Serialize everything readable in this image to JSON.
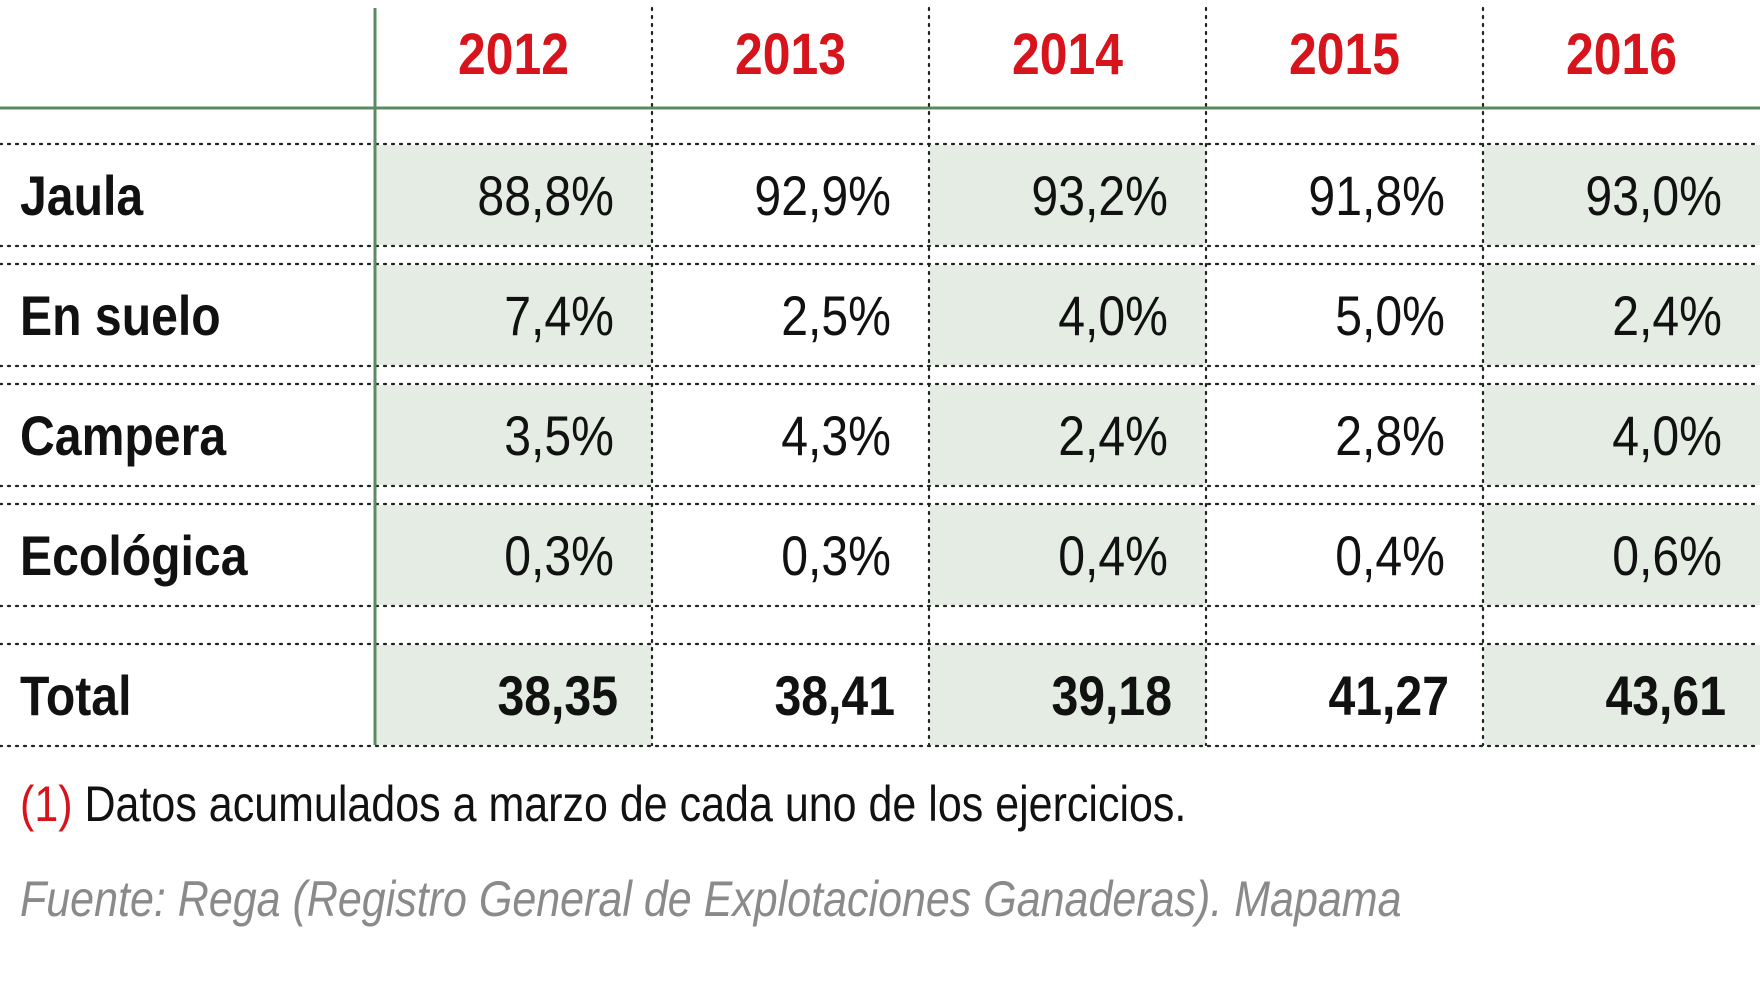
{
  "chart_data": {
    "type": "table",
    "columns": [
      "2012",
      "2013",
      "2014",
      "2015",
      "2016"
    ],
    "rows": [
      {
        "label": "Jaula",
        "values": [
          "88,8%",
          "92,9%",
          "93,2%",
          "91,8%",
          "93,0%"
        ]
      },
      {
        "label": "En suelo",
        "values": [
          "7,4%",
          "2,5%",
          "4,0%",
          "5,0%",
          "2,4%"
        ]
      },
      {
        "label": "Campera",
        "values": [
          "3,5%",
          "4,3%",
          "2,4%",
          "2,8%",
          "4,0%"
        ]
      },
      {
        "label": "Ecológica",
        "values": [
          "0,3%",
          "0,3%",
          "0,4%",
          "0,4%",
          "0,6%"
        ]
      }
    ],
    "total": {
      "label": "Total",
      "values": [
        "38,35",
        "38,41",
        "39,18",
        "41,27",
        "43,61"
      ]
    }
  },
  "footnote": {
    "marker": "(1)",
    "text": " Datos acumulados a marzo de cada uno de los ejercicios."
  },
  "source": "Fuente: Rega (Registro General de Explotaciones Ganaderas). Mapama",
  "colors": {
    "header_text": "#d7141b",
    "shade": "#e4ece4",
    "rule": "#5b8a60",
    "text": "#111111",
    "source_text": "#8a8a8a"
  }
}
